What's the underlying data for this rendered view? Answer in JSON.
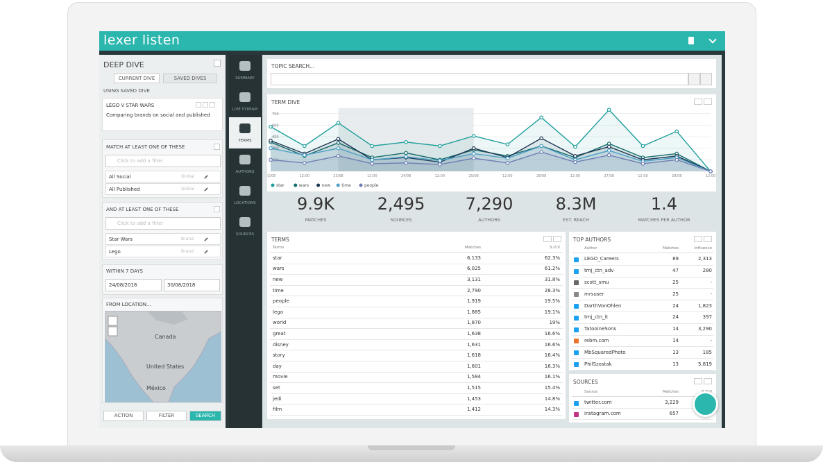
{
  "header": {
    "logo": "lexer listen"
  },
  "sidebar": {
    "title": "DEEP DIVE",
    "tabs": [
      "CURRENT DIVE",
      "SAVED DIVES"
    ],
    "using": "USING SAVED DIVE",
    "dive": {
      "name": "LEGO V STAR WARS",
      "description": "Comparing brands on social and published"
    },
    "sections": [
      {
        "title": "MATCH AT LEAST ONE OF THESE",
        "placeholder": "Click to add a filter",
        "filters": [
          {
            "name": "All Social",
            "type": "Global"
          },
          {
            "name": "All Published",
            "type": "Global"
          }
        ]
      },
      {
        "title": "AND AT LEAST ONE OF THESE",
        "placeholder": "Click to add a filter",
        "filters": [
          {
            "name": "Star Wars",
            "type": "Brand"
          },
          {
            "name": "Lego",
            "type": "Brand"
          }
        ]
      }
    ],
    "date": {
      "title": "WITHIN 7 DAYS",
      "from": "24/08/2018",
      "to": "30/08/2018"
    },
    "location": {
      "title": "FROM LOCATION...",
      "map_labels": [
        "Canada",
        "United States",
        "México"
      ]
    },
    "buttons": [
      "ACTION",
      "FILTER",
      "SEARCH"
    ]
  },
  "nav": [
    "SUMMARY",
    "LIVE STREAM",
    "TERMS",
    "AUTHORS",
    "LOCATIONS",
    "SOURCES"
  ],
  "topic_search": {
    "title": "TOPIC SEARCH..."
  },
  "chart_data": {
    "type": "line",
    "title": "TERM DIVE",
    "categories": [
      "22/08",
      "12:00",
      "23/08",
      "12:00",
      "24/08",
      "12:00",
      "25/08",
      "12:00",
      "26/08",
      "12:00",
      "27/08",
      "12:00",
      "28/08",
      "12:00"
    ],
    "series": [
      {
        "name": "star",
        "color": "#1f9e9b",
        "values": [
          580,
          330,
          630,
          330,
          380,
          330,
          460,
          350,
          700,
          320,
          800,
          330,
          520,
          0
        ]
      },
      {
        "name": "wars",
        "color": "#136b6a",
        "values": [
          380,
          200,
          370,
          180,
          240,
          150,
          280,
          200,
          330,
          180,
          360,
          180,
          230,
          0
        ]
      },
      {
        "name": "new",
        "color": "#1d3553",
        "values": [
          400,
          230,
          420,
          150,
          180,
          120,
          300,
          180,
          430,
          200,
          320,
          150,
          200,
          0
        ]
      },
      {
        "name": "time",
        "color": "#4b9fc6",
        "values": [
          300,
          210,
          300,
          150,
          190,
          140,
          230,
          170,
          330,
          150,
          270,
          130,
          180,
          0
        ]
      },
      {
        "name": "people",
        "color": "#6d7db3",
        "values": [
          150,
          110,
          200,
          100,
          110,
          90,
          170,
          110,
          250,
          120,
          210,
          100,
          150,
          0
        ]
      }
    ],
    "ylim": [
      0,
      820
    ],
    "yticks": [
      150,
      300,
      450,
      600,
      750
    ],
    "grid": true
  },
  "stats": [
    {
      "value": "9.9K",
      "label": "MATCHES"
    },
    {
      "value": "2,495",
      "label": "SOURCES"
    },
    {
      "value": "7,290",
      "label": "AUTHORS"
    },
    {
      "value": "8.3M",
      "label": "EST. REACH"
    },
    {
      "value": "1.4",
      "label": "MATCHES PER AUTHOR"
    }
  ],
  "terms": {
    "title": "TERMS",
    "columns": [
      "Terms",
      "Matches",
      "S.O.V"
    ],
    "rows": [
      [
        "star",
        "6,133",
        "62.3%"
      ],
      [
        "wars",
        "6,025",
        "61.2%"
      ],
      [
        "new",
        "3,131",
        "31.8%"
      ],
      [
        "time",
        "2,790",
        "28.3%"
      ],
      [
        "people",
        "1,919",
        "19.5%"
      ],
      [
        "lego",
        "1,885",
        "19.1%"
      ],
      [
        "world",
        "1,870",
        "19%"
      ],
      [
        "great",
        "1,638",
        "16.6%"
      ],
      [
        "disney",
        "1,631",
        "16.6%"
      ],
      [
        "story",
        "1,618",
        "16.4%"
      ],
      [
        "day",
        "1,601",
        "16.3%"
      ],
      [
        "movie",
        "1,584",
        "16.1%"
      ],
      [
        "set",
        "1,515",
        "15.4%"
      ],
      [
        "jedi",
        "1,453",
        "14.8%"
      ],
      [
        "film",
        "1,412",
        "14.3%"
      ]
    ]
  },
  "authors": {
    "title": "TOP AUTHORS",
    "columns": [
      "Author",
      "Matches",
      "Influence"
    ],
    "rows": [
      [
        "LEGO_Careers",
        "89",
        "2,313"
      ],
      [
        "tmj_ctn_adv",
        "47",
        "280"
      ],
      [
        "scott_smu",
        "25",
        "-"
      ],
      [
        "mrsuser",
        "25",
        "-"
      ],
      [
        "DarthVonOhlen",
        "24",
        "1,823"
      ],
      [
        "tmj_ctn_it",
        "24",
        "397"
      ],
      [
        "TatooineSons",
        "14",
        "3,290"
      ],
      [
        "rebm.com",
        "14",
        "-"
      ],
      [
        "MbSquaredPhoto",
        "13",
        "185"
      ],
      [
        "PhilSzostak",
        "13",
        "5,819"
      ]
    ]
  },
  "sources": {
    "title": "SOURCES",
    "columns": [
      "Source",
      "Matches",
      "S.O.V"
    ],
    "rows": [
      [
        "twitter.com",
        "3,229"
      ],
      [
        "instagram.com",
        "657"
      ]
    ]
  }
}
